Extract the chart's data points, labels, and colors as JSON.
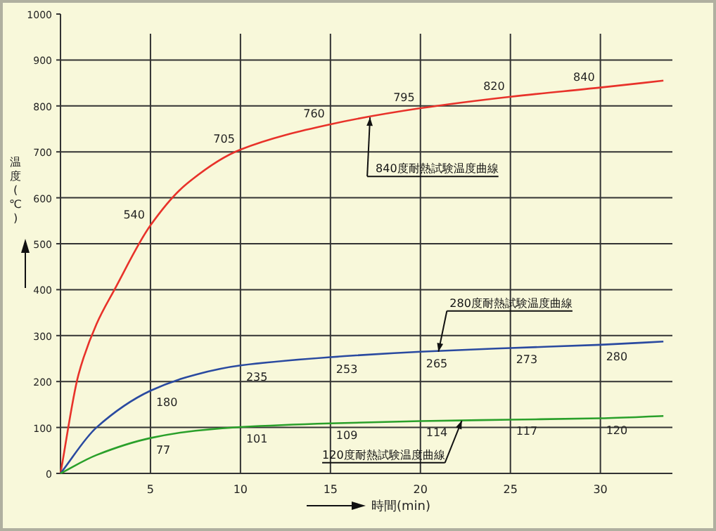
{
  "chart_data": {
    "type": "line",
    "xlabel": "時間(min)",
    "ylabel": "温度(℃)",
    "xlim": [
      0,
      34
    ],
    "xticks": [
      5,
      10,
      15,
      20,
      25,
      30
    ],
    "ylim": [
      0,
      1000
    ],
    "yticks": [
      0,
      100,
      200,
      300,
      400,
      500,
      600,
      700,
      800,
      900,
      1000
    ],
    "grid": true,
    "marker": "none",
    "line_style": "solid",
    "series": [
      {
        "color": "#e8322a",
        "x": [
          0,
          1,
          2,
          3,
          5,
          7,
          10,
          15,
          20,
          25,
          30,
          33.5
        ],
        "values": [
          0,
          215,
          325,
          400,
          540,
          630,
          705,
          760,
          795,
          820,
          840,
          855
        ],
        "value_labels": [
          null,
          null,
          null,
          null,
          "540",
          null,
          "705",
          "760",
          "795",
          "820",
          "840",
          null
        ]
      },
      {
        "color": "#2a4aa0",
        "x": [
          0,
          2,
          5,
          7.5,
          10,
          15,
          20,
          25,
          30,
          33.5
        ],
        "values": [
          0,
          100,
          180,
          215,
          235,
          253,
          265,
          273,
          280,
          287
        ],
        "value_labels": [
          null,
          null,
          "180",
          null,
          "235",
          "253",
          "265",
          "273",
          "280",
          null
        ]
      },
      {
        "color": "#2aa02a",
        "x": [
          0,
          2,
          5,
          7.5,
          10,
          15,
          20,
          25,
          30,
          33.5
        ],
        "values": [
          0,
          40,
          77,
          93,
          101,
          109,
          114,
          117,
          120,
          125
        ],
        "value_labels": [
          null,
          null,
          "77",
          null,
          "101",
          "109",
          "114",
          "117",
          "120",
          null
        ]
      }
    ],
    "annotations": [
      {
        "text": "840度耐熱試験温度曲線",
        "x": 17.2,
        "y": 775
      },
      {
        "text": "280度耐熱試験温度曲線",
        "x": 21,
        "y": 265
      },
      {
        "text": "120度耐熱試験温度曲線",
        "x": 22.3,
        "y": 115
      }
    ]
  }
}
